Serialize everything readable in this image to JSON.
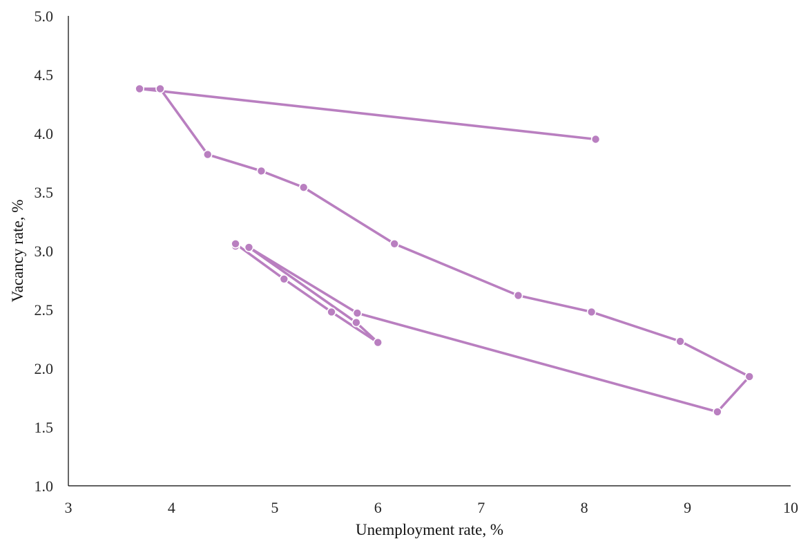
{
  "chart_data": {
    "type": "line",
    "xlabel": "Unemployment rate, %",
    "ylabel": "Vacancy rate, %",
    "xlim": [
      3,
      10
    ],
    "ylim": [
      1.0,
      5.0
    ],
    "x_ticks": [
      "3",
      "4",
      "5",
      "6",
      "7",
      "8",
      "9",
      "10"
    ],
    "y_ticks": [
      "1.0",
      "1.5",
      "2.0",
      "2.5",
      "3.0",
      "3.5",
      "4.0",
      "4.5",
      "5.0"
    ],
    "grid": false,
    "legend": "none",
    "series": [
      {
        "color": "#b97fc0",
        "markers": true,
        "points": [
          {
            "x": 4.62,
            "y": 3.04
          },
          {
            "x": 4.62,
            "y": 3.06
          },
          {
            "x": 5.09,
            "y": 2.76
          },
          {
            "x": 5.55,
            "y": 2.48
          },
          {
            "x": 6.0,
            "y": 2.22
          },
          {
            "x": 5.79,
            "y": 2.39
          },
          {
            "x": 4.75,
            "y": 3.03
          },
          {
            "x": 5.8,
            "y": 2.47
          },
          {
            "x": 9.29,
            "y": 1.63
          },
          {
            "x": 9.6,
            "y": 1.93
          },
          {
            "x": 8.93,
            "y": 2.23
          },
          {
            "x": 8.07,
            "y": 2.48
          },
          {
            "x": 7.36,
            "y": 2.62
          },
          {
            "x": 6.16,
            "y": 3.06
          },
          {
            "x": 5.28,
            "y": 3.54
          },
          {
            "x": 4.87,
            "y": 3.68
          },
          {
            "x": 4.35,
            "y": 3.82
          },
          {
            "x": 3.89,
            "y": 4.38
          },
          {
            "x": 3.69,
            "y": 4.38
          },
          {
            "x": 8.11,
            "y": 3.95
          }
        ]
      }
    ]
  }
}
